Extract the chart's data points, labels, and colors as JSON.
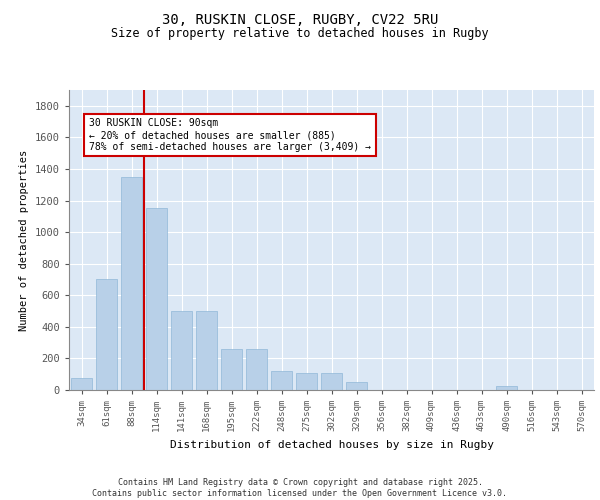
{
  "title": "30, RUSKIN CLOSE, RUGBY, CV22 5RU",
  "subtitle": "Size of property relative to detached houses in Rugby",
  "xlabel": "Distribution of detached houses by size in Rugby",
  "ylabel": "Number of detached properties",
  "bar_color": "#b8d0e8",
  "bar_edge_color": "#90b8d8",
  "bg_color": "#dce8f5",
  "fig_color": "#ffffff",
  "grid_color": "#ffffff",
  "annotation_box_text": "30 RUSKIN CLOSE: 90sqm\n← 20% of detached houses are smaller (885)\n78% of semi-detached houses are larger (3,409) →",
  "annotation_line_color": "#cc0000",
  "annotation_box_edge_color": "#cc0000",
  "footer": "Contains HM Land Registry data © Crown copyright and database right 2025.\nContains public sector information licensed under the Open Government Licence v3.0.",
  "categories": [
    "34sqm",
    "61sqm",
    "88sqm",
    "114sqm",
    "141sqm",
    "168sqm",
    "195sqm",
    "222sqm",
    "248sqm",
    "275sqm",
    "302sqm",
    "329sqm",
    "356sqm",
    "382sqm",
    "409sqm",
    "436sqm",
    "463sqm",
    "490sqm",
    "516sqm",
    "543sqm",
    "570sqm"
  ],
  "values": [
    75,
    700,
    1350,
    1150,
    500,
    500,
    260,
    260,
    118,
    105,
    105,
    50,
    0,
    0,
    0,
    0,
    0,
    25,
    0,
    0,
    0
  ],
  "ylim": [
    0,
    1900
  ],
  "yticks": [
    0,
    200,
    400,
    600,
    800,
    1000,
    1200,
    1400,
    1600,
    1800
  ]
}
